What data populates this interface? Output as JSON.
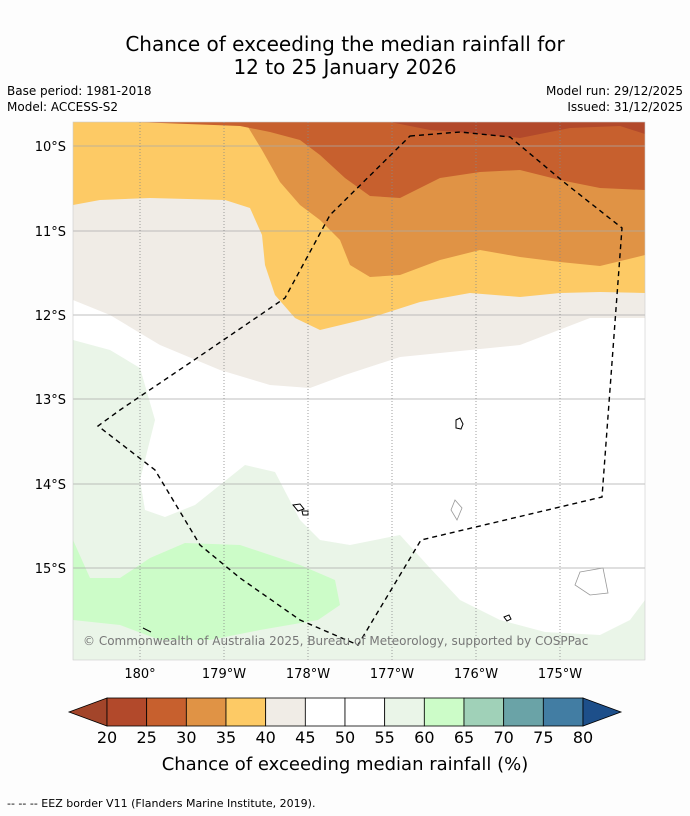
{
  "header": {
    "title_line1": "Chance of exceeding the median rainfall for",
    "title_line2": "12 to 25 January 2026",
    "base_period": "Base period: 1981-2018",
    "model": "Model: ACCESS-S2",
    "model_run": "Model run: 29/12/2025",
    "issued": "Issued: 31/12/2025"
  },
  "map": {
    "lat_labels": [
      "10°S",
      "11°S",
      "12°S",
      "13°S",
      "14°S",
      "15°S"
    ],
    "lon_labels": [
      "180°",
      "179°W",
      "178°W",
      "177°W",
      "176°W",
      "175°W"
    ],
    "attribution": "© Commonwealth of Australia 2025, Bureau of Meteorology, supported by COSPPac",
    "legend_ticks": [
      "20",
      "25",
      "30",
      "35",
      "40",
      "45",
      "50",
      "55",
      "60",
      "65",
      "70",
      "75",
      "80"
    ],
    "legend_colors": [
      "#a3452a",
      "#b2492b",
      "#c7602e",
      "#e09345",
      "#fdca65",
      "#f0ece6",
      "#ffffff",
      "#ffffff",
      "#eaf5e8",
      "#ccfcc8",
      "#a0d1b8",
      "#6aa3a7",
      "#427da3",
      "#1d4f8a"
    ],
    "colorbar_label": "Chance of exceeding median rainfall (%)"
  },
  "footer": {
    "eez_note": "--  --  -- EEZ border V11 (Flanders Marine Institute, 2019)."
  }
}
